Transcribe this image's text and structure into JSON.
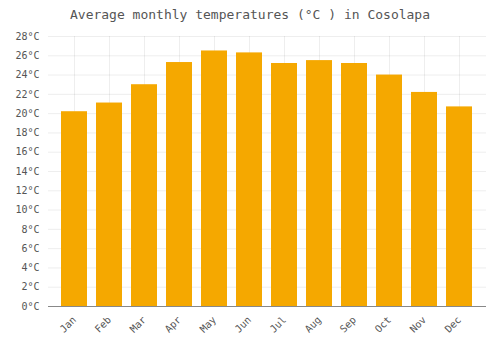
{
  "chart_data": {
    "type": "bar",
    "title": "Average monthly temperatures (°C ) in Cosolapa",
    "categories": [
      "Jan",
      "Feb",
      "Mar",
      "Apr",
      "May",
      "Jun",
      "Jul",
      "Aug",
      "Sep",
      "Oct",
      "Nov",
      "Dec"
    ],
    "values": [
      20.2,
      21.1,
      23.0,
      25.3,
      26.5,
      26.3,
      25.2,
      25.5,
      25.2,
      24.0,
      22.2,
      20.7
    ],
    "color": "#F5A800",
    "ylim": [
      0,
      28
    ],
    "yticks": [
      {
        "value": 0,
        "label": "0°C"
      },
      {
        "value": 2,
        "label": "2°C"
      },
      {
        "value": 4,
        "label": "4°C"
      },
      {
        "value": 6,
        "label": "6°C"
      },
      {
        "value": 8,
        "label": "8°C"
      },
      {
        "value": 10,
        "label": "10°C"
      },
      {
        "value": 12,
        "label": "12°C"
      },
      {
        "value": 14,
        "label": "14°C"
      },
      {
        "value": 16,
        "label": "16°C"
      },
      {
        "value": 18,
        "label": "18°C"
      },
      {
        "value": 20,
        "label": "20°C"
      },
      {
        "value": 22,
        "label": "22°C"
      },
      {
        "value": 24,
        "label": "24°C"
      },
      {
        "value": 26,
        "label": "26°C"
      },
      {
        "value": 28,
        "label": "28°C"
      }
    ],
    "grid": true
  }
}
